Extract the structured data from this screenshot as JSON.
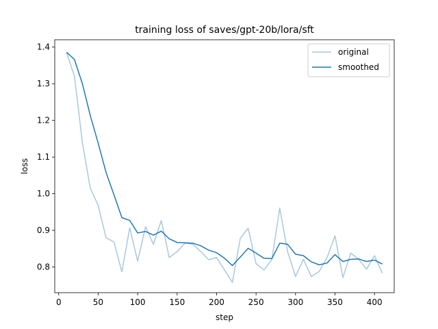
{
  "chart_data": {
    "type": "line",
    "title": "training loss of saves/gpt-20b/lora/sft",
    "xlabel": "step",
    "ylabel": "loss",
    "xlim": [
      -5,
      425
    ],
    "ylim": [
      0.73,
      1.42
    ],
    "xticks": [
      0,
      50,
      100,
      150,
      200,
      250,
      300,
      350,
      400
    ],
    "yticks": [
      0.8,
      0.9,
      1.0,
      1.1,
      1.2,
      1.3,
      1.4
    ],
    "ytick_labels": [
      "0.8",
      "0.9",
      "1.0",
      "1.1",
      "1.2",
      "1.3",
      "1.4"
    ],
    "grid": false,
    "legend": "top-right",
    "x": [
      10,
      20,
      30,
      40,
      50,
      60,
      70,
      80,
      90,
      100,
      110,
      120,
      130,
      140,
      150,
      160,
      170,
      180,
      190,
      200,
      210,
      220,
      230,
      240,
      250,
      260,
      270,
      280,
      290,
      300,
      310,
      320,
      330,
      340,
      350,
      360,
      370,
      380,
      390,
      400,
      410
    ],
    "series": [
      {
        "name": "original",
        "color": "#a6c8e0",
        "values": [
          1.385,
          1.32,
          1.14,
          1.015,
          0.968,
          0.88,
          0.868,
          0.787,
          0.907,
          0.816,
          0.91,
          0.862,
          0.927,
          0.826,
          0.842,
          0.865,
          0.862,
          0.842,
          0.82,
          0.826,
          0.792,
          0.758,
          0.878,
          0.906,
          0.809,
          0.792,
          0.82,
          0.961,
          0.842,
          0.774,
          0.821,
          0.774,
          0.788,
          0.826,
          0.885,
          0.771,
          0.838,
          0.821,
          0.794,
          0.831,
          0.783
        ]
      },
      {
        "name": "smoothed",
        "color": "#1f77b4",
        "values": [
          1.386,
          1.366,
          1.3,
          1.213,
          1.138,
          1.058,
          0.997,
          0.935,
          0.927,
          0.893,
          0.897,
          0.887,
          0.898,
          0.877,
          0.867,
          0.866,
          0.865,
          0.858,
          0.846,
          0.839,
          0.824,
          0.804,
          0.827,
          0.851,
          0.838,
          0.824,
          0.823,
          0.865,
          0.862,
          0.835,
          0.831,
          0.814,
          0.806,
          0.811,
          0.834,
          0.815,
          0.821,
          0.822,
          0.815,
          0.819,
          0.808
        ]
      }
    ]
  }
}
